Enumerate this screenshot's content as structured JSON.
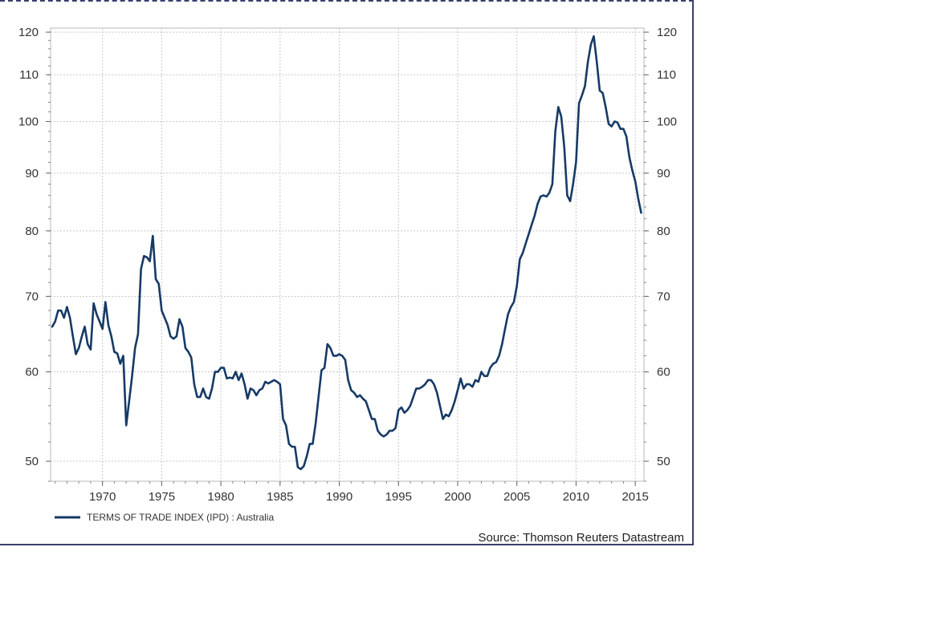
{
  "chart_data": {
    "type": "line",
    "scale": "log",
    "ylim": [
      48,
      121
    ],
    "xlim": [
      1965.75,
      2015.6
    ],
    "y_ticks": [
      50,
      60,
      70,
      80,
      90,
      100,
      110,
      120
    ],
    "y_tick_labels": [
      "50",
      "60",
      "70",
      "80",
      "90",
      "100",
      "110",
      "120"
    ],
    "x_ticks": [
      1970,
      1975,
      1980,
      1985,
      1990,
      1995,
      2000,
      2005,
      2010,
      2015
    ],
    "x_tick_labels": [
      "1970",
      "1975",
      "1980",
      "1985",
      "1990",
      "1995",
      "2000",
      "2005",
      "2010",
      "2015"
    ],
    "grid": true,
    "axes": "left and right y-axes (mirrored)",
    "legend_position": "bottom-left",
    "line_color": "#163a66",
    "series": [
      {
        "name": "TERMS OF TRADE INDEX (IPD) : Australia",
        "points": [
          [
            1965.75,
            65.8
          ],
          [
            1966.0,
            66.5
          ],
          [
            1966.25,
            68.0
          ],
          [
            1966.5,
            68.0
          ],
          [
            1966.75,
            67.0
          ],
          [
            1967.0,
            68.5
          ],
          [
            1967.25,
            67.0
          ],
          [
            1967.5,
            64.5
          ],
          [
            1967.75,
            62.2
          ],
          [
            1968.0,
            63.0
          ],
          [
            1968.25,
            64.5
          ],
          [
            1968.5,
            65.8
          ],
          [
            1968.75,
            63.5
          ],
          [
            1969.0,
            62.8
          ],
          [
            1969.25,
            69.0
          ],
          [
            1969.5,
            67.5
          ],
          [
            1969.75,
            66.5
          ],
          [
            1970.0,
            65.5
          ],
          [
            1970.25,
            69.2
          ],
          [
            1970.5,
            66.0
          ],
          [
            1970.75,
            64.5
          ],
          [
            1971.0,
            62.5
          ],
          [
            1971.25,
            62.3
          ],
          [
            1971.5,
            61.0
          ],
          [
            1971.75,
            62.0
          ],
          [
            1972.0,
            53.8
          ],
          [
            1972.25,
            56.5
          ],
          [
            1972.5,
            59.5
          ],
          [
            1972.75,
            63.0
          ],
          [
            1973.0,
            64.8
          ],
          [
            1973.25,
            74.0
          ],
          [
            1973.5,
            76.0
          ],
          [
            1973.75,
            75.8
          ],
          [
            1974.0,
            75.2
          ],
          [
            1974.25,
            79.2
          ],
          [
            1974.5,
            72.5
          ],
          [
            1974.75,
            71.8
          ],
          [
            1975.0,
            68.0
          ],
          [
            1975.25,
            67.0
          ],
          [
            1975.5,
            66.0
          ],
          [
            1975.75,
            64.5
          ],
          [
            1976.0,
            64.2
          ],
          [
            1976.25,
            64.5
          ],
          [
            1976.5,
            66.8
          ],
          [
            1976.75,
            65.8
          ],
          [
            1977.0,
            63.0
          ],
          [
            1977.25,
            62.5
          ],
          [
            1977.5,
            61.8
          ],
          [
            1977.75,
            58.5
          ],
          [
            1978.0,
            57.0
          ],
          [
            1978.25,
            57.0
          ],
          [
            1978.5,
            58.0
          ],
          [
            1978.75,
            57.0
          ],
          [
            1979.0,
            56.8
          ],
          [
            1979.25,
            58.0
          ],
          [
            1979.5,
            60.0
          ],
          [
            1979.75,
            60.0
          ],
          [
            1980.0,
            60.5
          ],
          [
            1980.25,
            60.5
          ],
          [
            1980.5,
            59.2
          ],
          [
            1980.75,
            59.3
          ],
          [
            1981.0,
            59.2
          ],
          [
            1981.25,
            60.0
          ],
          [
            1981.5,
            59.0
          ],
          [
            1981.75,
            59.8
          ],
          [
            1982.0,
            58.5
          ],
          [
            1982.25,
            56.8
          ],
          [
            1982.5,
            58.0
          ],
          [
            1982.75,
            57.8
          ],
          [
            1983.0,
            57.2
          ],
          [
            1983.25,
            57.8
          ],
          [
            1983.5,
            58.0
          ],
          [
            1983.75,
            58.8
          ],
          [
            1984.0,
            58.6
          ],
          [
            1984.25,
            58.8
          ],
          [
            1984.5,
            59.0
          ],
          [
            1984.75,
            58.8
          ],
          [
            1985.0,
            58.5
          ],
          [
            1985.25,
            54.5
          ],
          [
            1985.5,
            53.8
          ],
          [
            1985.75,
            51.8
          ],
          [
            1986.0,
            51.5
          ],
          [
            1986.25,
            51.5
          ],
          [
            1986.5,
            49.4
          ],
          [
            1986.75,
            49.2
          ],
          [
            1987.0,
            49.5
          ],
          [
            1987.25,
            50.5
          ],
          [
            1987.5,
            51.8
          ],
          [
            1987.75,
            51.8
          ],
          [
            1988.0,
            54.0
          ],
          [
            1988.25,
            57.0
          ],
          [
            1988.5,
            60.2
          ],
          [
            1988.75,
            60.5
          ],
          [
            1989.0,
            63.5
          ],
          [
            1989.25,
            63.0
          ],
          [
            1989.5,
            62.0
          ],
          [
            1989.75,
            62.0
          ],
          [
            1990.0,
            62.2
          ],
          [
            1990.25,
            62.0
          ],
          [
            1990.5,
            61.5
          ],
          [
            1990.75,
            59.0
          ],
          [
            1991.0,
            57.8
          ],
          [
            1991.25,
            57.5
          ],
          [
            1991.5,
            57.0
          ],
          [
            1991.75,
            57.2
          ],
          [
            1992.0,
            56.8
          ],
          [
            1992.25,
            56.5
          ],
          [
            1992.5,
            55.5
          ],
          [
            1992.75,
            54.5
          ],
          [
            1993.0,
            54.5
          ],
          [
            1993.25,
            53.2
          ],
          [
            1993.5,
            52.8
          ],
          [
            1993.75,
            52.6
          ],
          [
            1994.0,
            52.8
          ],
          [
            1994.25,
            53.2
          ],
          [
            1994.5,
            53.2
          ],
          [
            1994.75,
            53.5
          ],
          [
            1995.0,
            55.5
          ],
          [
            1995.25,
            55.8
          ],
          [
            1995.5,
            55.2
          ],
          [
            1995.75,
            55.5
          ],
          [
            1996.0,
            56.0
          ],
          [
            1996.25,
            57.0
          ],
          [
            1996.5,
            58.0
          ],
          [
            1996.75,
            58.0
          ],
          [
            1997.0,
            58.2
          ],
          [
            1997.25,
            58.5
          ],
          [
            1997.5,
            59.0
          ],
          [
            1997.75,
            59.0
          ],
          [
            1998.0,
            58.5
          ],
          [
            1998.25,
            57.5
          ],
          [
            1998.5,
            56.0
          ],
          [
            1998.75,
            54.5
          ],
          [
            1999.0,
            55.0
          ],
          [
            1999.25,
            54.8
          ],
          [
            1999.5,
            55.5
          ],
          [
            1999.75,
            56.5
          ],
          [
            2000.0,
            57.8
          ],
          [
            2000.25,
            59.2
          ],
          [
            2000.5,
            58.0
          ],
          [
            2000.75,
            58.5
          ],
          [
            2001.0,
            58.5
          ],
          [
            2001.25,
            58.2
          ],
          [
            2001.5,
            59.0
          ],
          [
            2001.75,
            58.8
          ],
          [
            2002.0,
            60.0
          ],
          [
            2002.25,
            59.5
          ],
          [
            2002.5,
            59.5
          ],
          [
            2002.75,
            60.5
          ],
          [
            2003.0,
            61.0
          ],
          [
            2003.25,
            61.2
          ],
          [
            2003.5,
            62.0
          ],
          [
            2003.75,
            63.5
          ],
          [
            2004.0,
            65.5
          ],
          [
            2004.25,
            67.5
          ],
          [
            2004.5,
            68.5
          ],
          [
            2004.75,
            69.2
          ],
          [
            2005.0,
            71.5
          ],
          [
            2005.25,
            75.5
          ],
          [
            2005.5,
            76.5
          ],
          [
            2005.75,
            78.0
          ],
          [
            2006.0,
            79.5
          ],
          [
            2006.25,
            81.0
          ],
          [
            2006.5,
            82.5
          ],
          [
            2006.75,
            84.5
          ],
          [
            2007.0,
            85.8
          ],
          [
            2007.25,
            86.0
          ],
          [
            2007.5,
            85.8
          ],
          [
            2007.75,
            86.5
          ],
          [
            2008.0,
            88.0
          ],
          [
            2008.25,
            98.0
          ],
          [
            2008.5,
            103.0
          ],
          [
            2008.75,
            101.0
          ],
          [
            2009.0,
            95.0
          ],
          [
            2009.25,
            86.0
          ],
          [
            2009.5,
            85.0
          ],
          [
            2009.75,
            88.0
          ],
          [
            2010.0,
            92.0
          ],
          [
            2010.25,
            103.8
          ],
          [
            2010.5,
            105.5
          ],
          [
            2010.75,
            107.5
          ],
          [
            2011.0,
            113.0
          ],
          [
            2011.25,
            117.0
          ],
          [
            2011.5,
            119.0
          ],
          [
            2011.75,
            113.0
          ],
          [
            2012.0,
            106.5
          ],
          [
            2012.25,
            106.0
          ],
          [
            2012.5,
            103.0
          ],
          [
            2012.75,
            99.5
          ],
          [
            2013.0,
            99.0
          ],
          [
            2013.25,
            100.0
          ],
          [
            2013.5,
            99.8
          ],
          [
            2013.75,
            98.5
          ],
          [
            2014.0,
            98.5
          ],
          [
            2014.25,
            97.0
          ],
          [
            2014.5,
            93.0
          ],
          [
            2014.75,
            90.5
          ],
          [
            2015.0,
            88.5
          ],
          [
            2015.25,
            85.5
          ],
          [
            2015.5,
            83.0
          ]
        ]
      }
    ],
    "legend": [
      {
        "label": "TERMS OF TRADE INDEX (IPD) : Australia",
        "color": "#163a66"
      }
    ],
    "source": "Source: Thomson Reuters Datastream"
  }
}
